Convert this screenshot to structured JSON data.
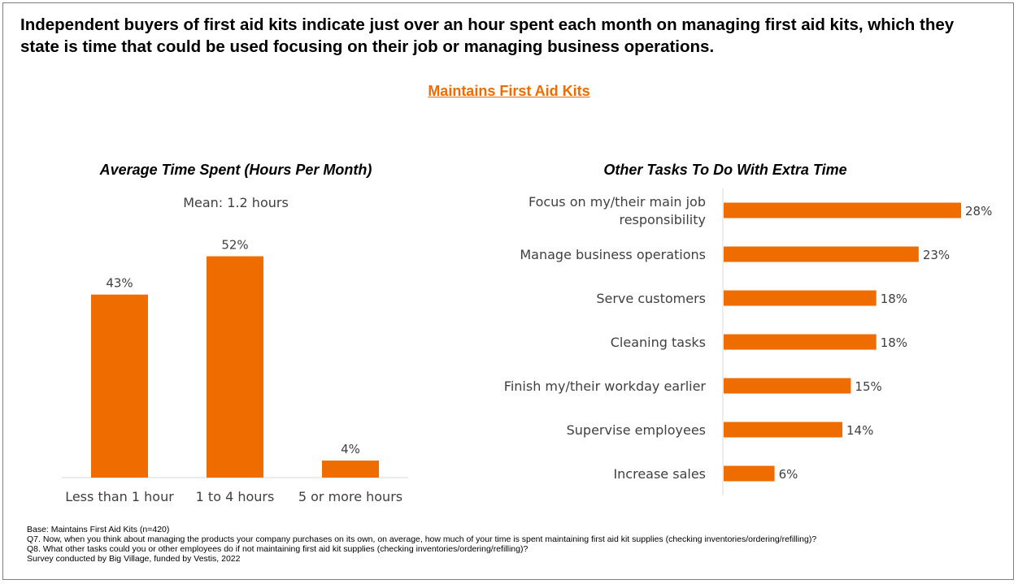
{
  "headline": "Independent buyers of first aid kits indicate just over an hour spent each month on managing first aid kits, which they state is time that could be used focusing on their job or managing business operations.",
  "section_title": "Maintains First Aid Kits",
  "colors": {
    "bar": "#ee6c00",
    "accent_text": "#ee6c00",
    "axis": "#d9d9d9",
    "label": "#404040"
  },
  "left_chart": {
    "title": "Average Time Spent (Hours Per Month)",
    "mean": "Mean: 1.2 hours"
  },
  "right_chart": {
    "title": "Other Tasks To Do With Extra Time"
  },
  "chart_data": [
    {
      "type": "bar",
      "orientation": "vertical",
      "title": "Average Time Spent (Hours Per Month)",
      "categories": [
        "Less than 1 hour",
        "1 to 4 hours",
        "5 or more hours"
      ],
      "values": [
        43,
        52,
        4
      ],
      "value_labels": [
        "43%",
        "52%",
        "4%"
      ],
      "unit": "%",
      "annotation": "Mean: 1.2 hours",
      "ylim": [
        0,
        60
      ],
      "grid": false,
      "legend": "none"
    },
    {
      "type": "bar",
      "orientation": "horizontal",
      "title": "Other Tasks To Do With Extra Time",
      "categories": [
        [
          "Focus on my/their main job",
          "responsibility"
        ],
        [
          "Manage business operations"
        ],
        [
          "Serve customers"
        ],
        [
          "Cleaning tasks"
        ],
        [
          "Finish my/their workday earlier"
        ],
        [
          "Supervise employees"
        ],
        [
          "Increase sales"
        ]
      ],
      "values": [
        28,
        23,
        18,
        18,
        15,
        14,
        6
      ],
      "value_labels": [
        "28%",
        "23%",
        "18%",
        "18%",
        "15%",
        "14%",
        "6%"
      ],
      "unit": "%",
      "xlim": [
        0,
        28
      ],
      "grid": false,
      "legend": "none"
    }
  ],
  "footnotes": [
    "Base: Maintains First Aid Kits (n=420)",
    "Q7. Now, when you think about managing the products your company purchases on its own, on average, how much of your time is spent maintaining first aid kit supplies (checking inventories/ordering/refilling)?",
    "Q8. What other tasks could you or other employees do if not maintaining first aid kit supplies (checking inventories/ordering/refilling)?",
    "Survey conducted by Big Village, funded by Vestis, 2022"
  ]
}
